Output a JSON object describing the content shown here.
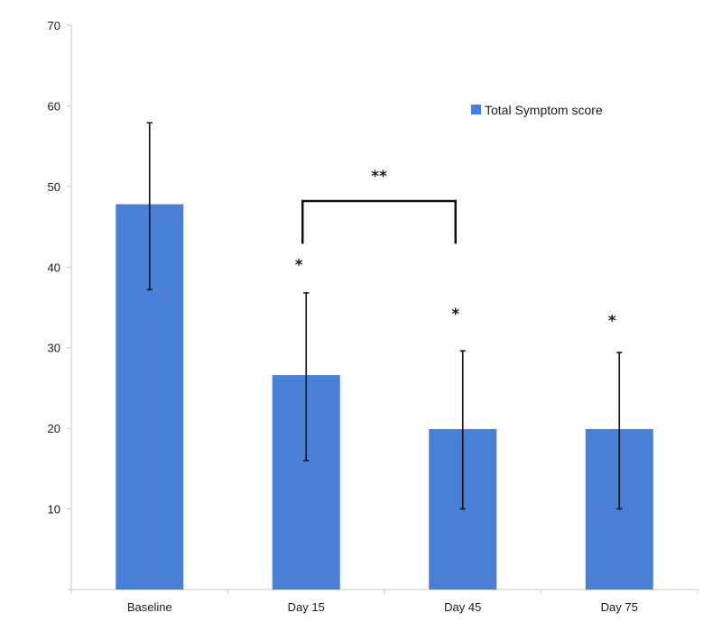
{
  "chart_data": {
    "type": "bar",
    "categories": [
      "Baseline",
      "Day 15",
      "Day 45",
      "Day 75"
    ],
    "series": [
      {
        "name": "Total Symptom score",
        "values": [
          47.8,
          26.6,
          19.9,
          19.9
        ],
        "error_low": [
          37.2,
          16.0,
          10.0,
          10.0
        ],
        "error_high": [
          57.9,
          36.8,
          29.6,
          29.4
        ],
        "color": "#4a7fd6"
      }
    ],
    "yticks": [
      10,
      20,
      30,
      40,
      50,
      60,
      70
    ],
    "ylim": [
      0,
      70
    ],
    "title": "",
    "xlabel": "",
    "ylabel": "",
    "grid": false,
    "legend_position": "top-right",
    "annotations": [
      {
        "category": "Day 15",
        "text": "*",
        "y": 40.3
      },
      {
        "category": "Day 45",
        "text": "*",
        "y": 34.2
      },
      {
        "category": "Day 75",
        "text": "*",
        "y": 33.4
      }
    ],
    "bracket": {
      "from": "Day 15",
      "to": "Day 45",
      "text": "**",
      "y": 48.2,
      "drop_to": 42.9
    }
  }
}
